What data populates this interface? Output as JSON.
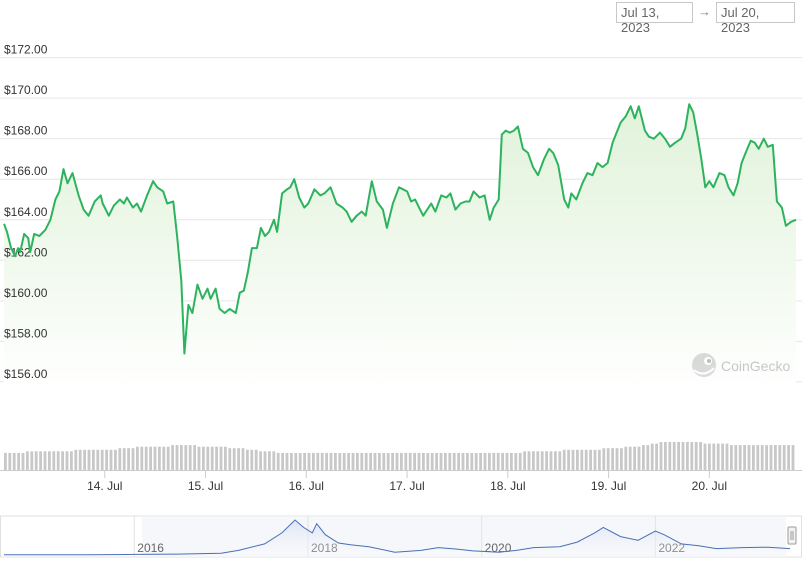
{
  "range_selector": {
    "from": "Jul 13, 2023",
    "arrow": "→",
    "to": "Jul 20, 2023"
  },
  "watermark": {
    "text": "CoinGecko",
    "icon": "gecko-logo-icon"
  },
  "colors": {
    "line": "#2db35e",
    "fill_top": "#dff2d8",
    "fill_bottom": "#ffffff",
    "volume": "#c8c8c8",
    "navigator_line": "#4a6fb5",
    "grid": "#e6e6e6",
    "axis_text": "#333333"
  },
  "chart_data": [
    {
      "type": "line",
      "y_ticks": [
        "$156.00",
        "$158.00",
        "$160.00",
        "$162.00",
        "$164.00",
        "$166.00",
        "$168.00",
        "$170.00",
        "$172.00"
      ],
      "y_tick_values": [
        156,
        158,
        160,
        162,
        164,
        166,
        168,
        170,
        172
      ],
      "ylim": [
        155.6,
        172.4
      ],
      "xlim": [
        13.0,
        20.86
      ],
      "x_ticks": [
        "14. Jul",
        "15. Jul",
        "16. Jul",
        "17. Jul",
        "18. Jul",
        "19. Jul",
        "20. Jul"
      ],
      "x_tick_values": [
        14,
        15,
        16,
        17,
        18,
        19,
        20
      ],
      "grid": true,
      "series": [
        {
          "points": [
            [
              13.0,
              163.8
            ],
            [
              13.03,
              163.4
            ],
            [
              13.07,
              162.6
            ],
            [
              13.11,
              162.2
            ],
            [
              13.14,
              162.6
            ],
            [
              13.16,
              162.4
            ],
            [
              13.2,
              163.3
            ],
            [
              13.24,
              163.1
            ],
            [
              13.26,
              162.4
            ],
            [
              13.3,
              163.3
            ],
            [
              13.35,
              163.2
            ],
            [
              13.41,
              163.5
            ],
            [
              13.46,
              164.0
            ],
            [
              13.51,
              165.0
            ],
            [
              13.55,
              165.4
            ],
            [
              13.59,
              166.5
            ],
            [
              13.63,
              165.8
            ],
            [
              13.68,
              166.3
            ],
            [
              13.74,
              165.2
            ],
            [
              13.79,
              164.5
            ],
            [
              13.84,
              164.2
            ],
            [
              13.9,
              164.9
            ],
            [
              13.96,
              165.2
            ],
            [
              13.98,
              164.8
            ],
            [
              14.04,
              164.2
            ],
            [
              14.09,
              164.7
            ],
            [
              14.15,
              165.0
            ],
            [
              14.19,
              164.8
            ],
            [
              14.22,
              165.1
            ],
            [
              14.28,
              164.6
            ],
            [
              14.32,
              164.8
            ],
            [
              14.36,
              164.4
            ],
            [
              14.42,
              165.2
            ],
            [
              14.48,
              165.9
            ],
            [
              14.52,
              165.6
            ],
            [
              14.58,
              165.4
            ],
            [
              14.62,
              164.8
            ],
            [
              14.68,
              164.9
            ],
            [
              14.72,
              163.1
            ],
            [
              14.76,
              161.0
            ],
            [
              14.79,
              157.4
            ],
            [
              14.83,
              159.8
            ],
            [
              14.87,
              159.4
            ],
            [
              14.92,
              160.8
            ],
            [
              14.97,
              160.1
            ],
            [
              15.02,
              160.6
            ],
            [
              15.05,
              160.1
            ],
            [
              15.1,
              160.6
            ],
            [
              15.14,
              159.6
            ],
            [
              15.19,
              159.4
            ],
            [
              15.24,
              159.6
            ],
            [
              15.3,
              159.4
            ],
            [
              15.34,
              160.4
            ],
            [
              15.38,
              160.5
            ],
            [
              15.42,
              161.4
            ],
            [
              15.46,
              162.6
            ],
            [
              15.51,
              162.6
            ],
            [
              15.55,
              163.6
            ],
            [
              15.59,
              163.2
            ],
            [
              15.63,
              163.4
            ],
            [
              15.68,
              164.0
            ],
            [
              15.71,
              163.4
            ],
            [
              15.76,
              165.3
            ],
            [
              15.81,
              165.5
            ],
            [
              15.84,
              165.6
            ],
            [
              15.88,
              166.0
            ],
            [
              15.93,
              165.1
            ],
            [
              15.98,
              164.6
            ],
            [
              16.02,
              164.8
            ],
            [
              16.08,
              165.5
            ],
            [
              16.14,
              165.2
            ],
            [
              16.18,
              165.3
            ],
            [
              16.24,
              165.6
            ],
            [
              16.3,
              164.8
            ],
            [
              16.36,
              164.6
            ],
            [
              16.4,
              164.4
            ],
            [
              16.45,
              163.9
            ],
            [
              16.5,
              164.2
            ],
            [
              16.55,
              164.4
            ],
            [
              16.59,
              164.2
            ],
            [
              16.65,
              165.9
            ],
            [
              16.7,
              164.9
            ],
            [
              16.76,
              164.5
            ],
            [
              16.8,
              163.6
            ],
            [
              16.86,
              164.8
            ],
            [
              16.92,
              165.6
            ],
            [
              16.96,
              165.5
            ],
            [
              17.0,
              165.4
            ],
            [
              17.04,
              164.9
            ],
            [
              17.08,
              165.0
            ],
            [
              17.12,
              164.6
            ],
            [
              17.16,
              164.2
            ],
            [
              17.2,
              164.5
            ],
            [
              17.24,
              164.8
            ],
            [
              17.28,
              164.4
            ],
            [
              17.34,
              165.2
            ],
            [
              17.39,
              165.1
            ],
            [
              17.43,
              165.3
            ],
            [
              17.48,
              164.5
            ],
            [
              17.53,
              164.8
            ],
            [
              17.58,
              164.9
            ],
            [
              17.62,
              164.9
            ],
            [
              17.66,
              165.4
            ],
            [
              17.72,
              165.1
            ],
            [
              17.77,
              165.2
            ],
            [
              17.82,
              164.0
            ],
            [
              17.86,
              164.6
            ],
            [
              17.91,
              165.0
            ],
            [
              17.94,
              168.2
            ],
            [
              17.98,
              168.4
            ],
            [
              18.02,
              168.3
            ],
            [
              18.06,
              168.4
            ],
            [
              18.1,
              168.6
            ],
            [
              18.15,
              167.5
            ],
            [
              18.2,
              167.3
            ],
            [
              18.25,
              166.6
            ],
            [
              18.3,
              166.2
            ],
            [
              18.36,
              167.0
            ],
            [
              18.41,
              167.5
            ],
            [
              18.45,
              167.3
            ],
            [
              18.5,
              166.7
            ],
            [
              18.56,
              165.0
            ],
            [
              18.6,
              164.6
            ],
            [
              18.63,
              165.3
            ],
            [
              18.68,
              165.0
            ],
            [
              18.74,
              165.8
            ],
            [
              18.79,
              166.3
            ],
            [
              18.84,
              166.2
            ],
            [
              18.89,
              166.8
            ],
            [
              18.94,
              166.6
            ],
            [
              18.99,
              166.8
            ],
            [
              19.04,
              167.8
            ],
            [
              19.08,
              168.3
            ],
            [
              19.12,
              168.8
            ],
            [
              19.17,
              169.1
            ],
            [
              19.22,
              169.6
            ],
            [
              19.26,
              169.0
            ],
            [
              19.3,
              169.6
            ],
            [
              19.36,
              168.4
            ],
            [
              19.4,
              168.1
            ],
            [
              19.45,
              168.0
            ],
            [
              19.51,
              168.3
            ],
            [
              19.56,
              168.0
            ],
            [
              19.61,
              167.6
            ],
            [
              19.66,
              167.8
            ],
            [
              19.72,
              168.0
            ],
            [
              19.76,
              168.5
            ],
            [
              19.8,
              169.7
            ],
            [
              19.84,
              169.3
            ],
            [
              19.88,
              168.2
            ],
            [
              19.92,
              167.0
            ],
            [
              19.96,
              165.6
            ],
            [
              20.0,
              165.9
            ],
            [
              20.04,
              165.6
            ],
            [
              20.1,
              166.3
            ],
            [
              20.15,
              166.2
            ],
            [
              20.19,
              165.6
            ],
            [
              20.24,
              165.2
            ],
            [
              20.28,
              165.8
            ],
            [
              20.32,
              166.8
            ],
            [
              20.36,
              167.3
            ],
            [
              20.41,
              167.9
            ],
            [
              20.45,
              167.8
            ],
            [
              20.49,
              167.5
            ],
            [
              20.54,
              168.0
            ],
            [
              20.58,
              167.6
            ],
            [
              20.63,
              167.7
            ],
            [
              20.67,
              164.9
            ],
            [
              20.72,
              164.6
            ],
            [
              20.76,
              163.7
            ],
            [
              20.81,
              163.9
            ],
            [
              20.86,
              164.0
            ]
          ]
        }
      ],
      "volume": [
        11,
        11,
        11,
        11,
        11,
        12,
        12,
        12,
        12,
        12,
        12,
        12,
        12,
        12,
        12,
        12,
        13,
        13,
        13,
        13,
        13,
        13,
        13,
        13,
        13,
        13,
        14,
        14,
        14,
        14,
        15,
        15,
        15,
        15,
        15,
        15,
        15,
        15,
        16,
        16,
        16,
        16,
        16,
        16,
        15,
        15,
        15,
        15,
        15,
        15,
        15,
        14,
        14,
        14,
        14,
        13,
        13,
        13,
        12,
        12,
        12,
        12,
        11,
        11,
        11,
        11,
        11,
        11,
        11,
        11,
        11,
        11,
        11,
        11,
        11,
        11,
        11,
        11,
        11,
        11,
        11,
        11,
        11,
        11,
        11,
        11,
        11,
        11,
        11,
        11,
        11,
        11,
        11,
        11,
        11,
        11,
        11,
        11,
        11,
        11,
        11,
        11,
        11,
        11,
        11,
        11,
        11,
        11,
        11,
        11,
        11,
        11,
        11,
        11,
        11,
        11,
        11,
        11,
        12,
        12,
        12,
        12,
        12,
        12,
        12,
        12,
        12,
        13,
        13,
        13,
        13,
        13,
        13,
        13,
        13,
        13,
        14,
        14,
        14,
        14,
        14,
        15,
        15,
        15,
        15,
        16,
        16,
        17,
        17,
        18,
        18,
        18,
        18,
        18,
        18,
        18,
        18,
        18,
        18,
        17,
        17,
        17,
        17,
        17,
        17,
        16,
        16,
        16,
        16,
        16,
        16,
        16,
        16,
        16,
        16,
        16,
        16,
        16,
        16,
        16
      ]
    },
    {
      "type": "area",
      "role": "navigator",
      "x_ticks": [
        "2016",
        "2018",
        "2020",
        "2022"
      ],
      "x_tick_values": [
        2016,
        2018,
        2020,
        2022
      ],
      "xlim": [
        2014.5,
        2023.55
      ],
      "points": [
        [
          2014.5,
          0.3
        ],
        [
          2015.5,
          0.3
        ],
        [
          2016.0,
          0.6
        ],
        [
          2016.5,
          1.0
        ],
        [
          2017.0,
          2.0
        ],
        [
          2017.2,
          5.0
        ],
        [
          2017.5,
          12.0
        ],
        [
          2017.7,
          24.0
        ],
        [
          2017.85,
          38.0
        ],
        [
          2017.95,
          30.0
        ],
        [
          2018.05,
          24.0
        ],
        [
          2018.1,
          34.0
        ],
        [
          2018.2,
          22.0
        ],
        [
          2018.35,
          13.0
        ],
        [
          2018.5,
          11.0
        ],
        [
          2018.7,
          9.0
        ],
        [
          2019.0,
          3.0
        ],
        [
          2019.3,
          5.0
        ],
        [
          2019.5,
          8.0
        ],
        [
          2019.7,
          6.5
        ],
        [
          2019.9,
          4.5
        ],
        [
          2020.2,
          3.0
        ],
        [
          2020.4,
          5.0
        ],
        [
          2020.6,
          8.0
        ],
        [
          2020.9,
          9.0
        ],
        [
          2021.1,
          14.0
        ],
        [
          2021.3,
          24.0
        ],
        [
          2021.4,
          30.0
        ],
        [
          2021.6,
          20.0
        ],
        [
          2021.8,
          16.0
        ],
        [
          2022.0,
          26.0
        ],
        [
          2022.1,
          22.0
        ],
        [
          2022.3,
          12.0
        ],
        [
          2022.5,
          10.0
        ],
        [
          2022.7,
          7.0
        ],
        [
          2023.0,
          8.0
        ],
        [
          2023.3,
          8.5
        ],
        [
          2023.55,
          7.0
        ]
      ]
    }
  ]
}
